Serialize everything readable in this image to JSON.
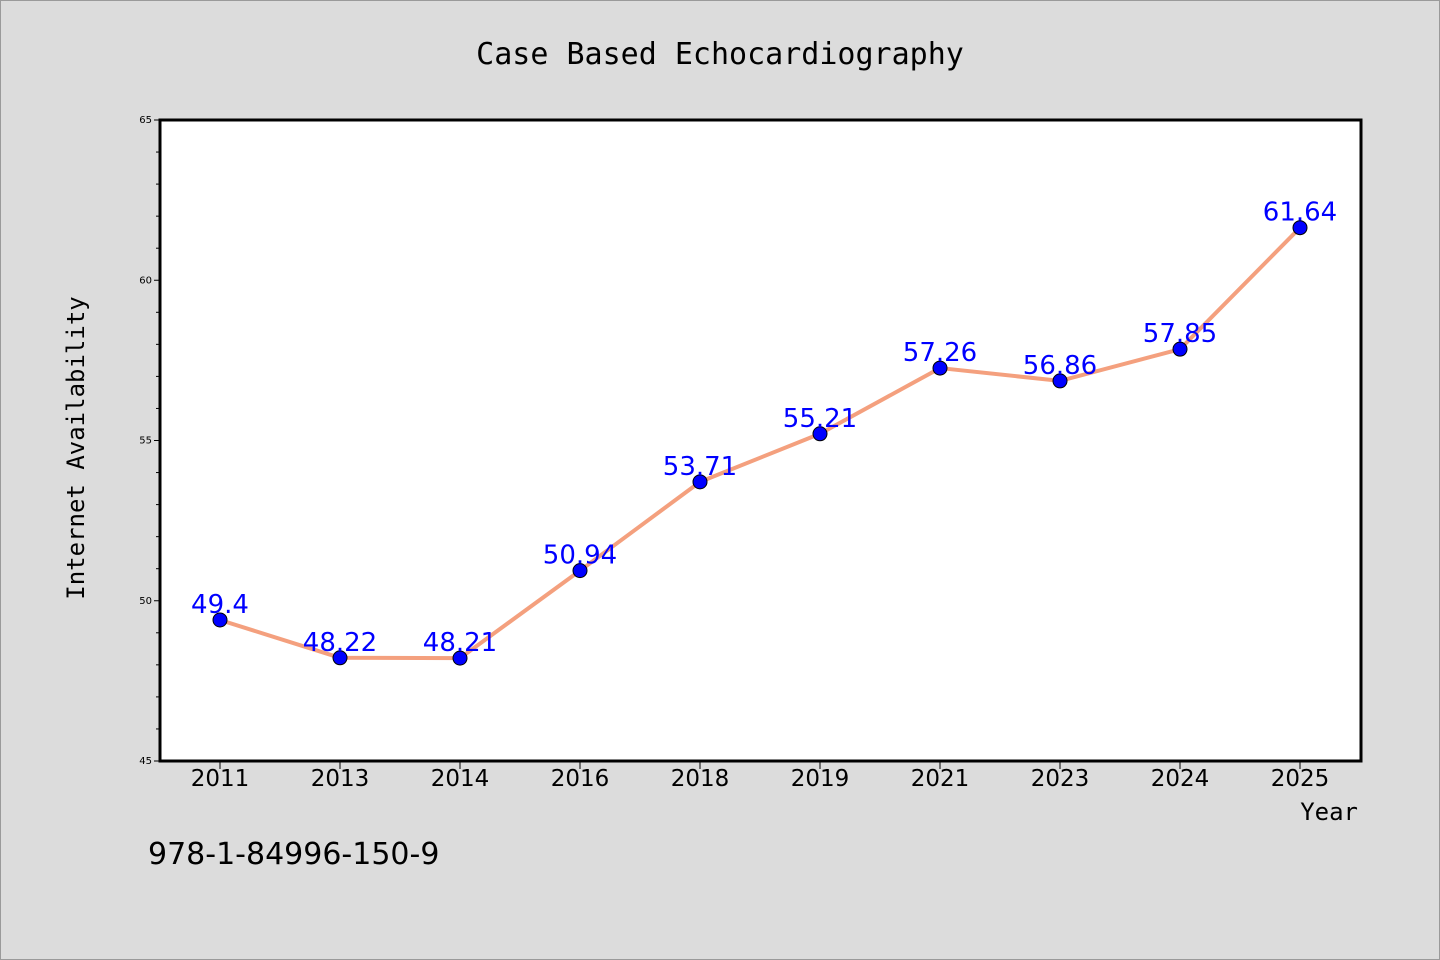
{
  "chart_data": {
    "type": "line",
    "title": "Case Based Echocardiography",
    "xlabel": "Year",
    "ylabel": "Internet Availability",
    "categories": [
      "2011",
      "2013",
      "2014",
      "2016",
      "2018",
      "2019",
      "2021",
      "2023",
      "2024",
      "2025"
    ],
    "series": [
      {
        "values": [
          49.4,
          48.22,
          48.21,
          50.94,
          53.71,
          55.21,
          57.26,
          56.86,
          57.85,
          61.64
        ]
      }
    ],
    "data_labels": [
      "49.4",
      "48.22",
      "48.21",
      "50.94",
      "53.71",
      "55.21",
      "57.26",
      "56.86",
      "57.85",
      "61.64"
    ],
    "ylim": [
      45,
      65
    ],
    "yticks": [
      "45",
      "50",
      "55",
      "60",
      "65"
    ],
    "grid": false,
    "line_color": "#f4a07e",
    "marker_color": "#0000ff",
    "label_color": "#0000ff"
  },
  "footer": {
    "isbn": "978-1-84996-150-9"
  }
}
